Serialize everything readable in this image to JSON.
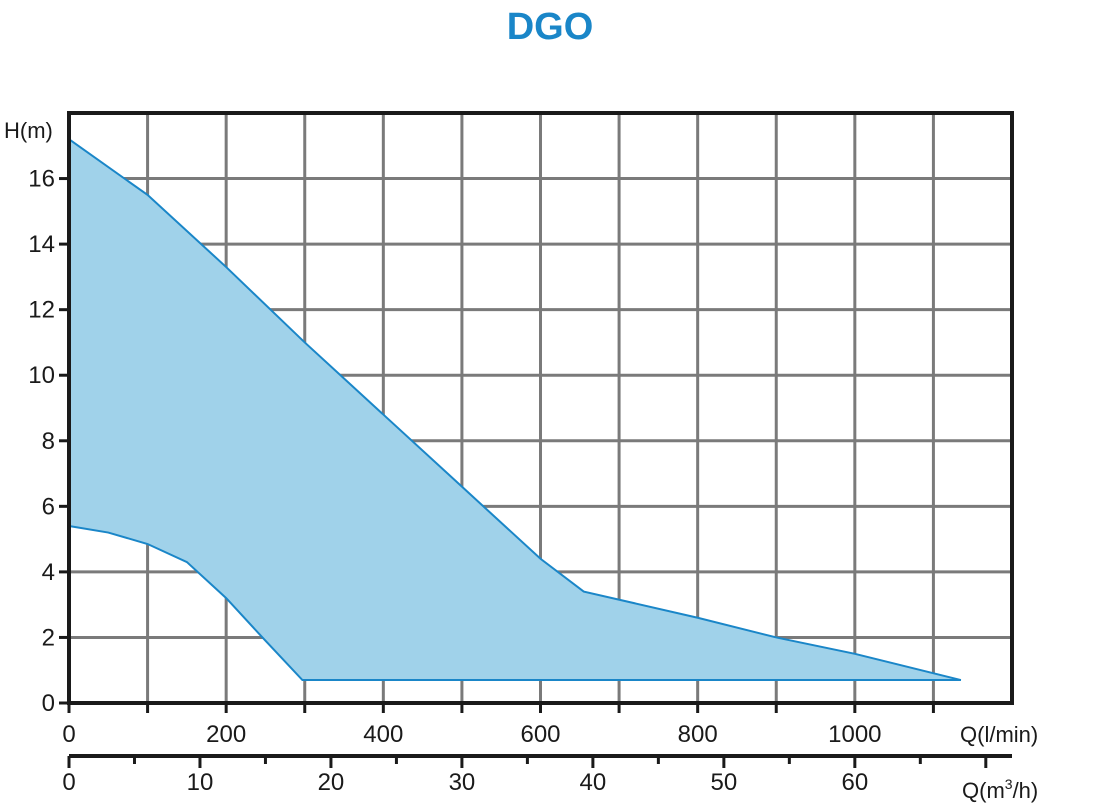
{
  "chart_data": {
    "type": "area",
    "title": "DGO",
    "ylabel": "H(m)",
    "xlabel": "Q(l/min)",
    "xlabel2_base": "Q(m",
    "xlabel2_sup": "3",
    "xlabel2_end": "/h)",
    "xlim": [
      0,
      1200
    ],
    "ylim": [
      0,
      18
    ],
    "x_ticks": [
      0,
      200,
      400,
      600,
      800,
      1000
    ],
    "y_ticks": [
      0,
      2,
      4,
      6,
      8,
      10,
      12,
      14,
      16
    ],
    "x2_ticks": [
      0,
      10,
      20,
      30,
      40,
      50,
      60
    ],
    "x2_lim": [
      0,
      72
    ],
    "grid": true,
    "colors": {
      "title": "#1a86c8",
      "fill": "#a0d2ea",
      "line": "#1a86c8",
      "grid": "#7a7a7a",
      "axis": "#1a1a1a"
    },
    "series": [
      {
        "upper_curve": [
          [
            0,
            17.2
          ],
          [
            100,
            15.5
          ],
          [
            200,
            13.3
          ],
          [
            300,
            11.0
          ],
          [
            400,
            8.8
          ],
          [
            500,
            6.6
          ],
          [
            600,
            4.4
          ],
          [
            655,
            3.4
          ],
          [
            800,
            2.6
          ],
          [
            900,
            2.0
          ],
          [
            1000,
            1.5
          ],
          [
            1135,
            0.7
          ]
        ],
        "lower_curve": [
          [
            0,
            5.4
          ],
          [
            50,
            5.2
          ],
          [
            100,
            4.85
          ],
          [
            150,
            4.3
          ],
          [
            200,
            3.2
          ],
          [
            250,
            1.9
          ],
          [
            297,
            0.7
          ],
          [
            1135,
            0.7
          ]
        ]
      }
    ]
  }
}
